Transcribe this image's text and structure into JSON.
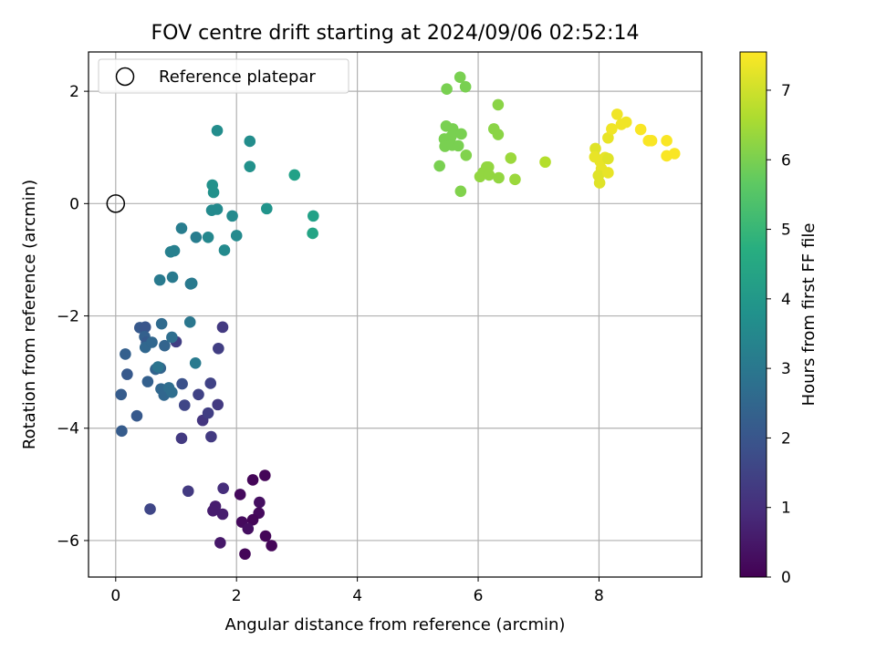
{
  "chart_data": {
    "type": "scatter",
    "title": "FOV centre drift starting at 2024/09/06 02:52:14",
    "xlabel": "Angular distance from reference (arcmin)",
    "ylabel": "Rotation from reference (arcmin)",
    "xlim": [
      -0.45,
      9.7
    ],
    "ylim": [
      -6.65,
      2.7
    ],
    "xticks": [
      0,
      2,
      4,
      6,
      8
    ],
    "yticks": [
      2,
      0,
      -2,
      -4,
      -6
    ],
    "xtick_labels": [
      "0",
      "2",
      "4",
      "6",
      "8"
    ],
    "ytick_labels": [
      "2",
      "0",
      "−2",
      "−4",
      "−6"
    ],
    "grid": true,
    "legend": {
      "label": "Reference platepar",
      "placement": "top-left"
    },
    "reference_point": {
      "x": 0,
      "y": 0
    },
    "colorbar": {
      "label": "Hours from first FF file",
      "colormap": "viridis",
      "range": [
        0,
        7.55
      ],
      "ticks": [
        0,
        1,
        2,
        3,
        4,
        5,
        6,
        7
      ],
      "tick_labels": [
        "0",
        "1",
        "2",
        "3",
        "4",
        "5",
        "6",
        "7"
      ]
    },
    "points": [
      {
        "x": 2.47,
        "y": -4.84,
        "t": 0.1
      },
      {
        "x": 2.27,
        "y": -4.92,
        "t": 0.1
      },
      {
        "x": 2.06,
        "y": -5.18,
        "t": 0.2
      },
      {
        "x": 2.38,
        "y": -5.32,
        "t": 0.3
      },
      {
        "x": 2.37,
        "y": -5.51,
        "t": 0.2
      },
      {
        "x": 2.27,
        "y": -5.63,
        "t": 0.1
      },
      {
        "x": 2.09,
        "y": -5.67,
        "t": 0.2
      },
      {
        "x": 2.19,
        "y": -5.79,
        "t": 0.3
      },
      {
        "x": 2.48,
        "y": -5.92,
        "t": 0.1
      },
      {
        "x": 2.58,
        "y": -6.09,
        "t": 0.1
      },
      {
        "x": 2.14,
        "y": -6.24,
        "t": 0.1
      },
      {
        "x": 1.73,
        "y": -6.04,
        "t": 0.5
      },
      {
        "x": 1.65,
        "y": -5.39,
        "t": 0.6
      },
      {
        "x": 1.61,
        "y": -5.47,
        "t": 0.6
      },
      {
        "x": 1.77,
        "y": -5.53,
        "t": 0.6
      },
      {
        "x": 1.78,
        "y": -5.07,
        "t": 1.0
      },
      {
        "x": 1.2,
        "y": -5.12,
        "t": 1.3
      },
      {
        "x": 0.57,
        "y": -5.44,
        "t": 1.6
      },
      {
        "x": 1.09,
        "y": -4.18,
        "t": 1.3
      },
      {
        "x": 1.58,
        "y": -4.15,
        "t": 1.3
      },
      {
        "x": 1.44,
        "y": -3.86,
        "t": 1.2
      },
      {
        "x": 1.53,
        "y": -3.73,
        "t": 1.4
      },
      {
        "x": 1.69,
        "y": -3.58,
        "t": 1.3
      },
      {
        "x": 1.14,
        "y": -3.59,
        "t": 1.6
      },
      {
        "x": 1.37,
        "y": -3.4,
        "t": 1.5
      },
      {
        "x": 1.57,
        "y": -3.2,
        "t": 1.5
      },
      {
        "x": 1.1,
        "y": -3.21,
        "t": 1.9
      },
      {
        "x": 1.7,
        "y": -2.58,
        "t": 1.4
      },
      {
        "x": 1.77,
        "y": -2.2,
        "t": 1.3
      },
      {
        "x": 1.0,
        "y": -2.46,
        "t": 1.4
      },
      {
        "x": 0.35,
        "y": -3.78,
        "t": 2.1
      },
      {
        "x": 0.1,
        "y": -4.05,
        "t": 2.2
      },
      {
        "x": 0.09,
        "y": -3.4,
        "t": 2.2
      },
      {
        "x": 0.19,
        "y": -3.04,
        "t": 2.1
      },
      {
        "x": 0.16,
        "y": -2.68,
        "t": 2.3
      },
      {
        "x": 0.4,
        "y": -2.21,
        "t": 2.1
      },
      {
        "x": 0.49,
        "y": -2.2,
        "t": 2.0
      },
      {
        "x": 0.48,
        "y": -2.37,
        "t": 2.3
      },
      {
        "x": 0.51,
        "y": -2.47,
        "t": 2.1
      },
      {
        "x": 0.49,
        "y": -2.56,
        "t": 2.5
      },
      {
        "x": 0.6,
        "y": -2.47,
        "t": 2.5
      },
      {
        "x": 0.66,
        "y": -2.95,
        "t": 2.4
      },
      {
        "x": 0.74,
        "y": -2.93,
        "t": 2.4
      },
      {
        "x": 0.81,
        "y": -2.53,
        "t": 2.4
      },
      {
        "x": 0.53,
        "y": -3.17,
        "t": 2.3
      },
      {
        "x": 0.75,
        "y": -3.3,
        "t": 2.5
      },
      {
        "x": 0.8,
        "y": -3.41,
        "t": 2.5
      },
      {
        "x": 0.88,
        "y": -3.28,
        "t": 2.7
      },
      {
        "x": 0.93,
        "y": -3.36,
        "t": 2.7
      },
      {
        "x": 0.93,
        "y": -2.38,
        "t": 2.7
      },
      {
        "x": 0.76,
        "y": -2.14,
        "t": 2.6
      },
      {
        "x": 0.7,
        "y": -2.91,
        "t": 2.9
      },
      {
        "x": 1.23,
        "y": -2.11,
        "t": 3.0
      },
      {
        "x": 1.32,
        "y": -2.84,
        "t": 3.1
      },
      {
        "x": 1.24,
        "y": -1.43,
        "t": 3.0
      },
      {
        "x": 1.26,
        "y": -1.42,
        "t": 3.1
      },
      {
        "x": 0.73,
        "y": -1.36,
        "t": 3.1
      },
      {
        "x": 0.94,
        "y": -1.31,
        "t": 3.1
      },
      {
        "x": 0.91,
        "y": -0.86,
        "t": 3.3
      },
      {
        "x": 0.97,
        "y": -0.84,
        "t": 3.3
      },
      {
        "x": 1.09,
        "y": -0.44,
        "t": 3.2
      },
      {
        "x": 1.33,
        "y": -0.6,
        "t": 3.2
      },
      {
        "x": 1.53,
        "y": -0.6,
        "t": 3.5
      },
      {
        "x": 1.8,
        "y": -0.83,
        "t": 3.6
      },
      {
        "x": 2.0,
        "y": -0.57,
        "t": 3.6
      },
      {
        "x": 1.93,
        "y": -0.22,
        "t": 3.6
      },
      {
        "x": 1.59,
        "y": -0.12,
        "t": 3.6
      },
      {
        "x": 1.68,
        "y": -0.1,
        "t": 3.6
      },
      {
        "x": 1.62,
        "y": 0.2,
        "t": 3.8
      },
      {
        "x": 1.6,
        "y": 0.33,
        "t": 3.8
      },
      {
        "x": 1.68,
        "y": 1.3,
        "t": 3.7
      },
      {
        "x": 2.22,
        "y": 1.11,
        "t": 3.7
      },
      {
        "x": 2.22,
        "y": 0.66,
        "t": 3.8
      },
      {
        "x": 2.5,
        "y": -0.09,
        "t": 3.9
      },
      {
        "x": 2.96,
        "y": 0.51,
        "t": 4.3
      },
      {
        "x": 3.27,
        "y": -0.22,
        "t": 4.3
      },
      {
        "x": 3.26,
        "y": -0.53,
        "t": 4.4
      },
      {
        "x": 5.7,
        "y": 2.25,
        "t": 6.0
      },
      {
        "x": 5.48,
        "y": 2.04,
        "t": 6.0
      },
      {
        "x": 5.79,
        "y": 2.08,
        "t": 6.0
      },
      {
        "x": 6.33,
        "y": 1.76,
        "t": 6.2
      },
      {
        "x": 5.47,
        "y": 1.38,
        "t": 6.0
      },
      {
        "x": 5.58,
        "y": 1.33,
        "t": 6.0
      },
      {
        "x": 5.44,
        "y": 1.15,
        "t": 6.0
      },
      {
        "x": 5.55,
        "y": 1.19,
        "t": 6.0
      },
      {
        "x": 5.45,
        "y": 1.02,
        "t": 6.0
      },
      {
        "x": 5.57,
        "y": 1.04,
        "t": 6.0
      },
      {
        "x": 5.67,
        "y": 1.03,
        "t": 6.0
      },
      {
        "x": 5.72,
        "y": 1.24,
        "t": 6.0
      },
      {
        "x": 5.8,
        "y": 0.86,
        "t": 6.1
      },
      {
        "x": 6.26,
        "y": 1.33,
        "t": 6.2
      },
      {
        "x": 6.33,
        "y": 1.23,
        "t": 6.2
      },
      {
        "x": 5.36,
        "y": 0.67,
        "t": 6.0
      },
      {
        "x": 5.71,
        "y": 0.22,
        "t": 6.1
      },
      {
        "x": 6.14,
        "y": 0.65,
        "t": 6.3
      },
      {
        "x": 6.17,
        "y": 0.65,
        "t": 6.3
      },
      {
        "x": 6.08,
        "y": 0.55,
        "t": 6.3
      },
      {
        "x": 6.03,
        "y": 0.48,
        "t": 6.3
      },
      {
        "x": 6.18,
        "y": 0.51,
        "t": 6.3
      },
      {
        "x": 6.34,
        "y": 0.46,
        "t": 6.3
      },
      {
        "x": 6.54,
        "y": 0.81,
        "t": 6.4
      },
      {
        "x": 6.61,
        "y": 0.43,
        "t": 6.4
      },
      {
        "x": 7.11,
        "y": 0.74,
        "t": 6.7
      },
      {
        "x": 7.94,
        "y": 0.98,
        "t": 7.2
      },
      {
        "x": 7.93,
        "y": 0.83,
        "t": 7.3
      },
      {
        "x": 8.02,
        "y": 0.75,
        "t": 7.3
      },
      {
        "x": 8.1,
        "y": 0.82,
        "t": 7.3
      },
      {
        "x": 8.15,
        "y": 0.8,
        "t": 7.2
      },
      {
        "x": 8.04,
        "y": 0.62,
        "t": 7.3
      },
      {
        "x": 7.99,
        "y": 0.5,
        "t": 7.2
      },
      {
        "x": 8.01,
        "y": 0.37,
        "t": 7.2
      },
      {
        "x": 8.15,
        "y": 0.55,
        "t": 7.3
      },
      {
        "x": 8.15,
        "y": 1.17,
        "t": 7.3
      },
      {
        "x": 8.21,
        "y": 1.33,
        "t": 7.4
      },
      {
        "x": 8.3,
        "y": 1.59,
        "t": 7.4
      },
      {
        "x": 8.37,
        "y": 1.41,
        "t": 7.4
      },
      {
        "x": 8.45,
        "y": 1.45,
        "t": 7.4
      },
      {
        "x": 8.69,
        "y": 1.32,
        "t": 7.5
      },
      {
        "x": 8.82,
        "y": 1.12,
        "t": 7.5
      },
      {
        "x": 8.87,
        "y": 1.12,
        "t": 7.5
      },
      {
        "x": 9.12,
        "y": 1.12,
        "t": 7.5
      },
      {
        "x": 9.12,
        "y": 0.85,
        "t": 7.5
      },
      {
        "x": 9.25,
        "y": 0.89,
        "t": 7.5
      }
    ]
  }
}
